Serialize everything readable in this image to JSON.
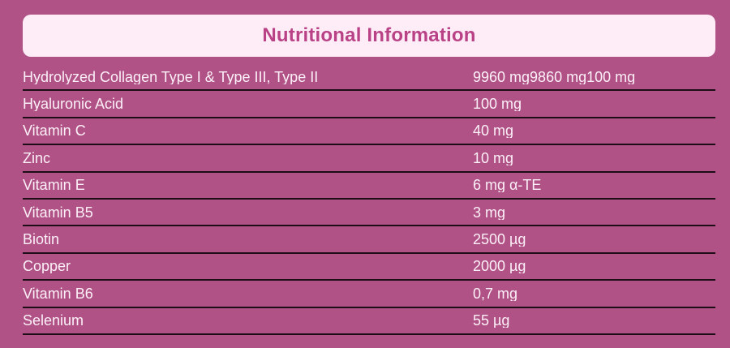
{
  "title": "Nutritional Information",
  "colors": {
    "background": "#b05285",
    "header_background": "#feecf6",
    "header_text": "#b94287",
    "row_text": "#fcf0f8",
    "divider": "#1c0d17"
  },
  "table": {
    "rows": [
      {
        "label": "Hydrolyzed Collagen Type I & Type III, Type II",
        "value": "9960 mg9860 mg100 mg"
      },
      {
        "label": "Hyaluronic Acid",
        "value": "100 mg"
      },
      {
        "label": "Vitamin C",
        "value": "40 mg"
      },
      {
        "label": "Zinc",
        "value": "10 mg"
      },
      {
        "label": "Vitamin E",
        "value": "6 mg α-TE"
      },
      {
        "label": "Vitamin B5",
        "value": "3 mg"
      },
      {
        "label": "Biotin",
        "value": "2500 µg"
      },
      {
        "label": "Copper",
        "value": "2000 µg"
      },
      {
        "label": "Vitamin B6",
        "value": "0,7 mg"
      },
      {
        "label": "Selenium",
        "value": "55 µg"
      }
    ]
  }
}
